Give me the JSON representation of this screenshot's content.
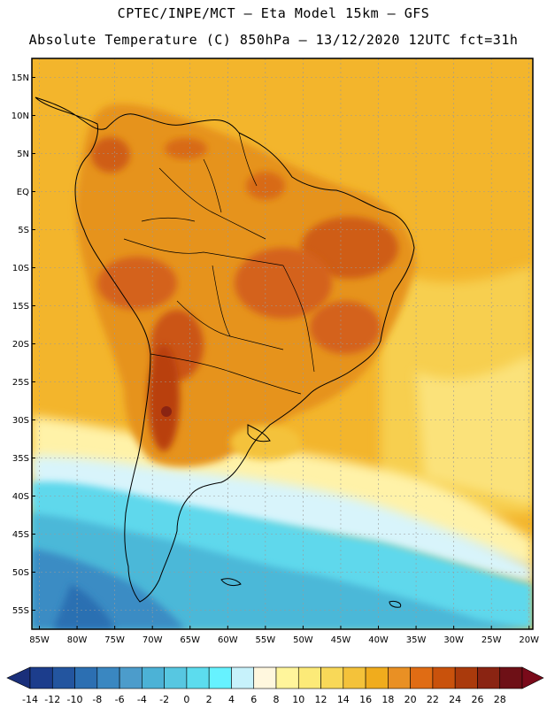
{
  "header": {
    "line1": "CPTEC/INPE/MCT –  Eta Model 15km – GFS",
    "line2": "Absolute Temperature (C) 850hPa – 13/12/2020 12UTC fct=31h"
  },
  "map": {
    "lat_labels": [
      "15N",
      "10N",
      "5N",
      "EQ",
      "5S",
      "10S",
      "15S",
      "20S",
      "25S",
      "30S",
      "35S",
      "40S",
      "45S",
      "50S",
      "55S"
    ],
    "lon_labels": [
      "85W",
      "80W",
      "75W",
      "70W",
      "65W",
      "60W",
      "55W",
      "50W",
      "45W",
      "40W",
      "35W",
      "30W",
      "25W",
      "20W"
    ],
    "ocean_color": "#f2b22c",
    "land_color": "#e08a1c"
  },
  "colorbar": {
    "labels": [
      "-14",
      "-12",
      "-10",
      "-8",
      "-6",
      "-4",
      "-2",
      "0",
      "2",
      "4",
      "6",
      "8",
      "10",
      "12",
      "14",
      "16",
      "18",
      "20",
      "22",
      "24",
      "26",
      "28"
    ],
    "colors": [
      "#1c3d8c",
      "#23559f",
      "#2c6fb2",
      "#3a87c1",
      "#4c9ccb",
      "#4cb2d6",
      "#57c7e1",
      "#5cdcee",
      "#66f2ff",
      "#c7f2fb",
      "#fff7de",
      "#fff59b",
      "#fcea78",
      "#f8d858",
      "#f4c23a",
      "#f0ac1d",
      "#e99024",
      "#e06c14",
      "#c9520c",
      "#aa3a0c",
      "#8a2412",
      "#6e1016"
    ],
    "left_arrow_color": "#1a2f7a",
    "right_arrow_color": "#7a0a1a"
  }
}
